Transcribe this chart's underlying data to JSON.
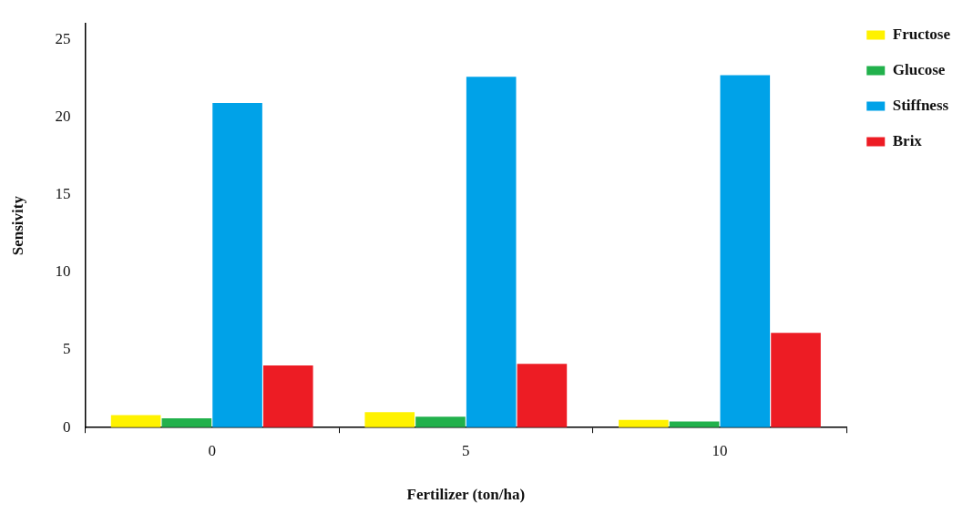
{
  "chart_data": {
    "type": "bar",
    "xlabel": "Fertilizer (ton/ha)",
    "ylabel": "Sensivity",
    "categories": [
      "0",
      "5",
      "10"
    ],
    "series": [
      {
        "name": "Fructose",
        "color": "#fff200",
        "values": [
          0.8,
          1.0,
          0.5
        ]
      },
      {
        "name": "Glucose",
        "color": "#22b14c",
        "values": [
          0.6,
          0.7,
          0.4
        ]
      },
      {
        "name": "Stiffness",
        "color": "#00a2e8",
        "values": [
          20.9,
          22.6,
          22.7
        ]
      },
      {
        "name": "Brix",
        "color": "#ed1c24",
        "values": [
          4.0,
          4.1,
          6.1
        ]
      }
    ],
    "ylim": [
      0,
      26
    ],
    "yticks": [
      0,
      5,
      10,
      15,
      20,
      25
    ],
    "grid": false,
    "legend": "right"
  }
}
